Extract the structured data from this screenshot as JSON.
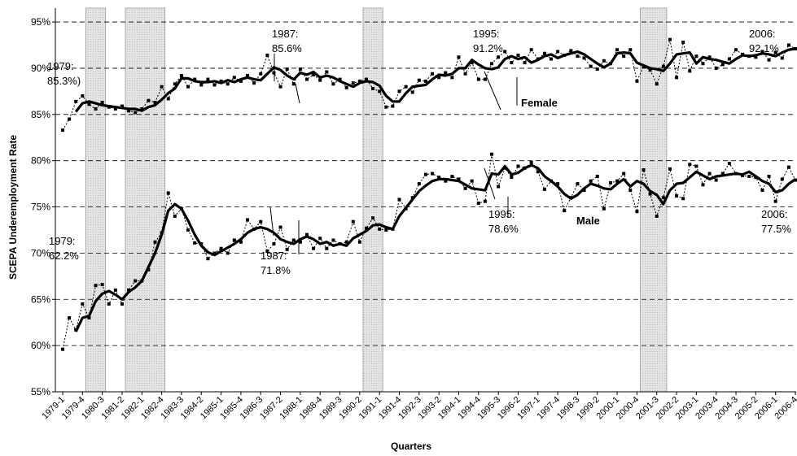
{
  "chart_data": {
    "type": "line",
    "y_label": "SCEPA Underemployment Rate",
    "x_label": "Quarters",
    "ylim": [
      55,
      96.5
    ],
    "yticks": [
      {
        "value": 55,
        "label": "55%"
      },
      {
        "value": 60,
        "label": "60%"
      },
      {
        "value": 65,
        "label": "65%"
      },
      {
        "value": 70,
        "label": "70%"
      },
      {
        "value": 75,
        "label": "75%"
      },
      {
        "value": 80,
        "label": "80%"
      },
      {
        "value": 85,
        "label": "85%"
      },
      {
        "value": 90,
        "label": "90%"
      },
      {
        "value": 95,
        "label": "95%"
      }
    ],
    "grid": true,
    "categories": [
      "1979-1",
      null,
      null,
      "1979-4",
      null,
      null,
      "1980-3",
      null,
      null,
      "1981-2",
      null,
      null,
      "1982-1",
      null,
      null,
      "1982-4",
      null,
      null,
      "1983-3",
      null,
      null,
      "1984-2",
      null,
      null,
      "1985-1",
      null,
      null,
      "1985-4",
      null,
      null,
      "1986-3",
      null,
      null,
      "1987-2",
      null,
      null,
      "1988-1",
      null,
      null,
      "1988-4",
      null,
      null,
      "1989-3",
      null,
      null,
      "1990-2",
      null,
      null,
      "1991-1",
      null,
      null,
      "1991-4",
      null,
      null,
      "1992-3",
      null,
      null,
      "1993-2",
      null,
      null,
      "1994-1",
      null,
      null,
      "1994-4",
      null,
      null,
      "1995-3",
      null,
      null,
      "1996-2",
      null,
      null,
      "1997-1",
      null,
      null,
      "1997-4",
      null,
      null,
      "1998-3",
      null,
      null,
      "1999-2",
      null,
      null,
      "2000-1",
      null,
      null,
      "2000-4",
      null,
      null,
      "2001-3",
      null,
      null,
      "2002-2",
      null,
      null,
      "2003-1",
      null,
      null,
      "2003-4",
      null,
      null,
      "2004-3",
      null,
      null,
      "2005-2",
      null,
      null,
      "2006-1",
      null,
      null,
      "2006-4"
    ],
    "shaded_ranges": [
      [
        4,
        6
      ],
      [
        10,
        15
      ],
      [
        46,
        48
      ],
      [
        88,
        91
      ]
    ],
    "series": [
      {
        "color": "#000000",
        "style": "raw",
        "values": [
          83.3,
          84.5,
          86.4,
          87.0,
          86.1,
          85.6,
          86.3,
          85.8,
          85.6,
          85.9,
          85.4,
          85.2,
          85.6,
          86.5,
          86.3,
          88.0,
          86.7,
          88.3,
          89.2,
          88.0,
          88.8,
          88.2,
          88.8,
          88.2,
          88.6,
          88.3,
          89.0,
          88.6,
          89.2,
          88.4,
          89.4,
          91.4,
          89.5,
          88.0,
          89.9,
          88.3,
          89.9,
          88.8,
          89.3,
          88.7,
          89.6,
          88.3,
          88.8,
          87.9,
          88.4,
          88.6,
          88.8,
          87.8,
          87.5,
          85.8,
          85.9,
          87.5,
          88.0,
          87.4,
          88.7,
          88.6,
          89.4,
          89.0,
          89.5,
          89.0,
          91.2,
          89.4,
          90.6,
          88.8,
          88.8,
          90.5,
          91.2,
          91.8,
          90.6,
          91.4,
          90.6,
          92.0,
          91.0,
          91.6,
          91.0,
          91.8,
          91.4,
          91.9,
          91.3,
          91.1,
          90.2,
          89.9,
          90.8,
          90.5,
          92.0,
          91.3,
          92.0,
          88.6,
          90.2,
          89.8,
          88.3,
          90.2,
          93.1,
          89.0,
          92.8,
          89.7,
          91.3,
          90.5,
          91.2,
          90.0,
          90.4,
          91.0,
          92.0,
          91.5,
          91.3,
          91.2,
          91.8,
          90.9,
          91.7,
          91.1,
          92.5,
          92.1
        ]
      },
      {
        "name": "Female",
        "color": "#000000",
        "style": "smooth",
        "values": [
          null,
          null,
          85.3,
          86.2,
          86.4,
          86.2,
          86.0,
          85.9,
          85.8,
          85.7,
          85.6,
          85.6,
          85.4,
          85.8,
          86.0,
          86.6,
          87.3,
          87.8,
          88.9,
          88.9,
          88.6,
          88.5,
          88.5,
          88.6,
          88.4,
          88.7,
          88.5,
          88.8,
          89.0,
          88.8,
          88.7,
          89.4,
          90.1,
          89.8,
          89.2,
          88.8,
          89.5,
          89.3,
          89.6,
          89.0,
          89.2,
          89.0,
          88.6,
          88.3,
          88.0,
          88.4,
          88.6,
          88.5,
          88.1,
          87.0,
          86.4,
          86.4,
          87.3,
          88.0,
          88.1,
          88.2,
          88.8,
          89.3,
          89.2,
          89.4,
          90.0,
          90.0,
          90.9,
          90.4,
          90.0,
          89.9,
          90.1,
          91.0,
          91.3,
          91.0,
          91.2,
          90.6,
          90.9,
          91.3,
          91.5,
          91.1,
          91.4,
          91.6,
          91.8,
          91.5,
          91.0,
          90.5,
          90.1,
          90.5,
          91.6,
          91.7,
          91.6,
          90.6,
          90.3,
          90.0,
          89.9,
          89.7,
          90.5,
          91.5,
          91.6,
          91.7,
          90.5,
          91.2,
          91.0,
          90.9,
          90.7,
          90.5,
          91.0,
          91.4,
          91.3,
          91.4,
          91.6,
          91.5,
          91.3,
          91.7,
          92.0,
          92.1
        ]
      },
      {
        "color": "#000000",
        "style": "raw",
        "values": [
          59.6,
          63.0,
          61.7,
          64.5,
          63.0,
          66.5,
          66.6,
          64.5,
          66.0,
          64.5,
          66.0,
          67.0,
          67.0,
          68.2,
          71.2,
          72.2,
          76.5,
          74.0,
          74.8,
          72.5,
          71.1,
          71.0,
          69.4,
          70.0,
          70.5,
          70.0,
          71.4,
          71.2,
          73.6,
          72.6,
          73.4,
          70.2,
          71.0,
          72.8,
          70.4,
          71.4,
          71.2,
          72.0,
          70.5,
          71.6,
          70.5,
          71.4,
          71.0,
          71.2,
          73.4,
          71.2,
          72.7,
          73.8,
          72.6,
          72.5,
          72.6,
          75.8,
          74.8,
          76.0,
          77.5,
          78.5,
          78.6,
          78.2,
          77.8,
          78.3,
          78.0,
          77.0,
          77.8,
          75.4,
          75.6,
          80.7,
          77.2,
          79.2,
          78.2,
          79.4,
          79.2,
          79.8,
          78.8,
          76.9,
          77.8,
          77.5,
          74.6,
          76.0,
          77.5,
          76.8,
          77.8,
          78.3,
          74.8,
          77.6,
          77.8,
          78.6,
          76.8,
          74.5,
          79.0,
          76.4,
          74.0,
          76.0,
          79.1,
          76.2,
          75.9,
          79.6,
          79.4,
          77.4,
          78.6,
          77.9,
          78.6,
          79.7,
          78.6,
          78.4,
          78.3,
          78.2,
          76.8,
          78.3,
          75.6,
          78.0,
          79.3,
          77.9
        ]
      },
      {
        "name": "Male",
        "color": "#000000",
        "style": "smooth",
        "values": [
          null,
          null,
          61.5,
          63.0,
          63.2,
          64.8,
          65.6,
          65.9,
          65.5,
          65.0,
          65.8,
          66.3,
          67.0,
          68.5,
          70.0,
          72.0,
          74.6,
          75.3,
          74.8,
          73.5,
          72.0,
          70.8,
          70.1,
          69.8,
          70.2,
          70.6,
          71.0,
          71.5,
          72.2,
          72.6,
          72.8,
          72.6,
          72.2,
          71.5,
          71.2,
          71.0,
          71.5,
          71.8,
          71.5,
          71.0,
          71.2,
          70.8,
          71.0,
          70.8,
          71.6,
          72.0,
          72.4,
          73.0,
          73.1,
          72.8,
          72.6,
          74.0,
          74.9,
          75.8,
          76.7,
          77.3,
          77.8,
          78.0,
          78.0,
          77.9,
          77.8,
          77.4,
          77.0,
          76.9,
          76.8,
          78.6,
          78.5,
          79.4,
          78.5,
          78.7,
          79.2,
          79.5,
          79.2,
          78.3,
          77.8,
          77.2,
          76.4,
          75.9,
          76.3,
          77.0,
          77.5,
          77.3,
          77.0,
          76.9,
          77.5,
          78.0,
          77.2,
          77.8,
          77.5,
          76.7,
          76.3,
          75.3,
          76.8,
          77.5,
          77.6,
          78.2,
          78.8,
          78.4,
          78.0,
          78.3,
          78.4,
          78.5,
          78.6,
          78.5,
          78.8,
          78.3,
          77.8,
          77.5,
          76.6,
          76.8,
          77.5,
          78.0
        ]
      }
    ],
    "annotations": [
      {
        "lines": [
          "1979:",
          "85.3%)"
        ]
      },
      {
        "lines": [
          "1987:",
          "85.6%"
        ]
      },
      {
        "lines": [
          "1995:",
          "91.2%"
        ]
      },
      {
        "lines": [
          "2006:",
          "92.1%"
        ]
      },
      {
        "lines": [
          "1979:",
          "62.2%"
        ]
      },
      {
        "lines": [
          "1987:",
          "71.8%"
        ]
      },
      {
        "lines": [
          "1995:",
          "78.6%"
        ]
      },
      {
        "lines": [
          "2006:",
          "77.5%"
        ]
      }
    ]
  }
}
